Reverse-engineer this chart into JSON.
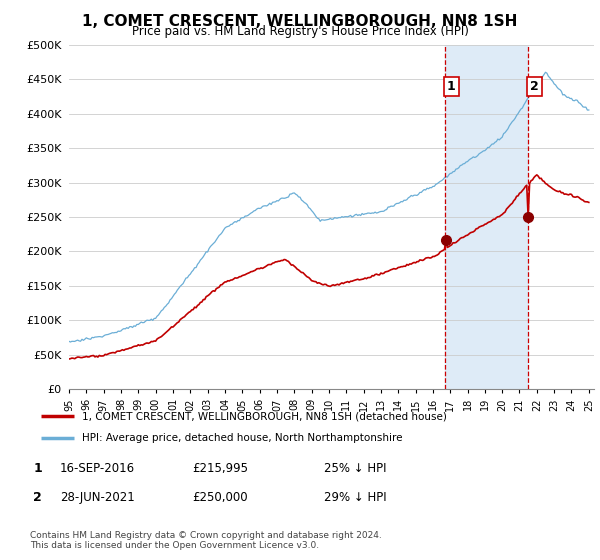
{
  "title": "1, COMET CRESCENT, WELLINGBOROUGH, NN8 1SH",
  "subtitle": "Price paid vs. HM Land Registry's House Price Index (HPI)",
  "legend_line1": "1, COMET CRESCENT, WELLINGBOROUGH, NN8 1SH (detached house)",
  "legend_line2": "HPI: Average price, detached house, North Northamptonshire",
  "sale1_date": "16-SEP-2016",
  "sale1_price": "£215,995",
  "sale1_hpi": "25% ↓ HPI",
  "sale2_date": "28-JUN-2021",
  "sale2_price": "£250,000",
  "sale2_hpi": "29% ↓ HPI",
  "footnote": "Contains HM Land Registry data © Crown copyright and database right 2024.\nThis data is licensed under the Open Government Licence v3.0.",
  "hpi_color": "#6baed6",
  "hpi_fill_color": "#deebf7",
  "price_color": "#c00000",
  "sale_marker_color": "#8b0000",
  "vline_color": "#cc0000",
  "ylim": [
    0,
    500000
  ],
  "yticks": [
    0,
    50000,
    100000,
    150000,
    200000,
    250000,
    300000,
    350000,
    400000,
    450000,
    500000
  ],
  "sale1_year": 2016.71,
  "sale2_year": 2021.49,
  "sale1_price_val": 215995,
  "sale2_price_val": 250000
}
